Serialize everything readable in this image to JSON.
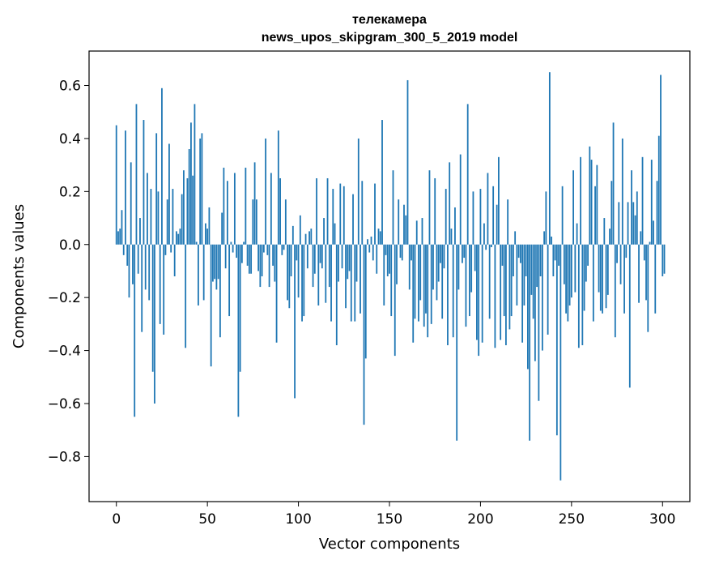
{
  "chart_data": {
    "type": "bar",
    "title": "телекамера",
    "subtitle": "news_upos_skipgram_300_5_2019 model",
    "xlabel": "Vector components",
    "ylabel": "Components values",
    "xlim": [
      -15,
      315
    ],
    "ylim": [
      -0.97,
      0.73
    ],
    "xticks": [
      0,
      50,
      100,
      150,
      200,
      250,
      300
    ],
    "xtick_labels": [
      "0",
      "50",
      "100",
      "150",
      "200",
      "250",
      "300"
    ],
    "yticks": [
      -0.8,
      -0.6,
      -0.4,
      -0.2,
      0.0,
      0.2,
      0.4,
      0.6
    ],
    "ytick_labels": [
      "−0.8",
      "−0.6",
      "−0.4",
      "−0.2",
      "0.0",
      "0.2",
      "0.4",
      "0.6"
    ],
    "bar_color": "#1f77b4",
    "grid": false,
    "values": [
      0.45,
      0.05,
      0.06,
      0.13,
      -0.04,
      0.43,
      -0.08,
      -0.2,
      0.31,
      -0.15,
      -0.65,
      0.53,
      -0.11,
      0.1,
      -0.33,
      0.47,
      -0.17,
      0.27,
      -0.21,
      0.21,
      -0.48,
      -0.6,
      0.42,
      0.2,
      -0.3,
      0.59,
      -0.34,
      -0.04,
      0.17,
      0.38,
      -0.03,
      0.21,
      -0.12,
      0.05,
      0.04,
      0.06,
      0.19,
      0.28,
      -0.39,
      0.25,
      0.36,
      0.46,
      0.26,
      0.53,
      0.01,
      -0.23,
      0.4,
      0.42,
      -0.21,
      0.08,
      0.06,
      0.14,
      -0.46,
      -0.14,
      -0.13,
      -0.17,
      -0.13,
      -0.35,
      0.12,
      0.29,
      -0.09,
      0.24,
      -0.27,
      0.01,
      -0.03,
      0.27,
      -0.05,
      -0.65,
      -0.48,
      -0.07,
      0.01,
      0.29,
      -0.08,
      -0.11,
      -0.11,
      0.17,
      0.31,
      0.17,
      -0.1,
      -0.16,
      -0.12,
      -0.03,
      0.4,
      -0.04,
      -0.16,
      0.27,
      -0.08,
      -0.14,
      -0.37,
      0.43,
      0.25,
      -0.04,
      -0.02,
      0.17,
      -0.21,
      -0.24,
      -0.12,
      0.07,
      -0.58,
      -0.06,
      -0.2,
      0.11,
      -0.29,
      -0.27,
      0.04,
      -0.09,
      0.05,
      0.06,
      -0.16,
      -0.11,
      0.25,
      -0.23,
      -0.07,
      -0.09,
      0.1,
      -0.22,
      0.25,
      -0.16,
      -0.29,
      0.21,
      0.08,
      -0.38,
      -0.14,
      0.23,
      -0.09,
      0.22,
      -0.24,
      -0.13,
      -0.1,
      -0.29,
      0.19,
      -0.29,
      -0.14,
      0.4,
      -0.26,
      0.24,
      -0.68,
      -0.43,
      0.02,
      -0.03,
      0.03,
      -0.06,
      0.23,
      -0.11,
      0.06,
      0.05,
      0.47,
      -0.23,
      -0.04,
      -0.12,
      -0.11,
      -0.27,
      0.28,
      -0.42,
      -0.15,
      0.17,
      -0.05,
      -0.06,
      0.15,
      0.11,
      0.62,
      -0.17,
      -0.06,
      -0.37,
      -0.28,
      0.09,
      -0.29,
      -0.21,
      0.1,
      -0.31,
      -0.26,
      -0.35,
      0.28,
      -0.3,
      -0.17,
      0.25,
      -0.21,
      -0.14,
      -0.07,
      -0.28,
      -0.09,
      0.21,
      -0.38,
      0.31,
      0.06,
      -0.35,
      0.14,
      -0.74,
      -0.17,
      0.34,
      -0.07,
      -0.05,
      -0.31,
      0.53,
      -0.27,
      -0.18,
      0.2,
      -0.1,
      -0.36,
      -0.42,
      0.21,
      -0.37,
      0.08,
      -0.02,
      0.27,
      -0.28,
      -0.01,
      0.22,
      -0.39,
      0.15,
      0.33,
      -0.36,
      -0.08,
      -0.27,
      -0.38,
      0.17,
      -0.32,
      -0.27,
      -0.12,
      0.05,
      -0.23,
      -0.05,
      -0.07,
      -0.37,
      -0.23,
      -0.12,
      -0.47,
      -0.74,
      -0.19,
      -0.28,
      -0.44,
      -0.16,
      -0.59,
      -0.12,
      -0.4,
      0.05,
      0.2,
      -0.34,
      0.65,
      0.03,
      -0.12,
      -0.06,
      -0.72,
      -0.08,
      -0.89,
      0.22,
      -0.15,
      -0.26,
      -0.29,
      -0.23,
      -0.2,
      0.28,
      -0.18,
      0.08,
      -0.39,
      0.33,
      -0.38,
      -0.25,
      -0.14,
      -0.08,
      0.37,
      0.32,
      -0.29,
      0.22,
      0.3,
      -0.18,
      -0.25,
      -0.26,
      0.1,
      -0.24,
      -0.19,
      0.06,
      0.24,
      0.46,
      -0.35,
      -0.07,
      0.16,
      -0.15,
      0.4,
      -0.26,
      -0.05,
      0.16,
      -0.54,
      0.28,
      0.16,
      0.11,
      0.2,
      -0.22,
      0.05,
      0.33,
      -0.06,
      -0.21,
      -0.33,
      0.01,
      0.32,
      0.09,
      -0.26,
      0.24,
      0.41,
      0.64,
      -0.12,
      -0.11
    ]
  }
}
